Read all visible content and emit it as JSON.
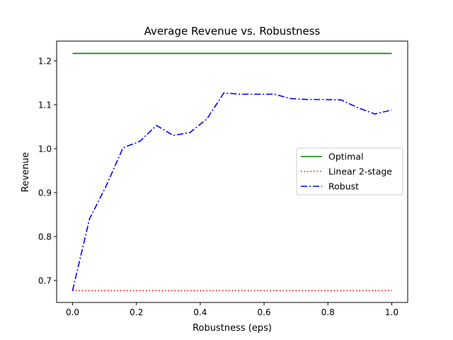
{
  "chart_data": {
    "type": "line",
    "title": "Average Revenue vs. Robustness",
    "xlabel": "Robustness (eps)",
    "ylabel": "Revenue",
    "xlim": [
      -0.05,
      1.05
    ],
    "ylim": [
      0.65,
      1.245
    ],
    "xticks": [
      0.0,
      0.2,
      0.4,
      0.6,
      0.8,
      1.0
    ],
    "xtick_labels": [
      "0.0",
      "0.2",
      "0.4",
      "0.6",
      "0.8",
      "1.0"
    ],
    "yticks": [
      0.7,
      0.8,
      0.9,
      1.0,
      1.1,
      1.2
    ],
    "ytick_labels": [
      "0.7",
      "0.8",
      "0.9",
      "1.0",
      "1.1",
      "1.2"
    ],
    "grid": false,
    "legend_position": "center-right",
    "series": [
      {
        "name": "Optimal",
        "color": "#008000",
        "style": "solid",
        "x": [
          0.0,
          1.0
        ],
        "y": [
          1.217,
          1.217
        ]
      },
      {
        "name": "Linear 2-stage",
        "color": "#ff0000",
        "style": "dotted",
        "x": [
          0.0,
          1.0
        ],
        "y": [
          0.677,
          0.677
        ]
      },
      {
        "name": "Robust",
        "color": "#0000ff",
        "style": "dashdot",
        "x": [
          0.0,
          0.053,
          0.105,
          0.158,
          0.211,
          0.263,
          0.316,
          0.368,
          0.421,
          0.474,
          0.526,
          0.579,
          0.632,
          0.684,
          0.737,
          0.789,
          0.842,
          0.895,
          0.947,
          1.0
        ],
        "y": [
          0.677,
          0.84,
          0.915,
          1.002,
          1.017,
          1.053,
          1.03,
          1.037,
          1.068,
          1.127,
          1.124,
          1.124,
          1.124,
          1.114,
          1.112,
          1.112,
          1.111,
          1.093,
          1.079,
          1.088
        ]
      }
    ]
  }
}
